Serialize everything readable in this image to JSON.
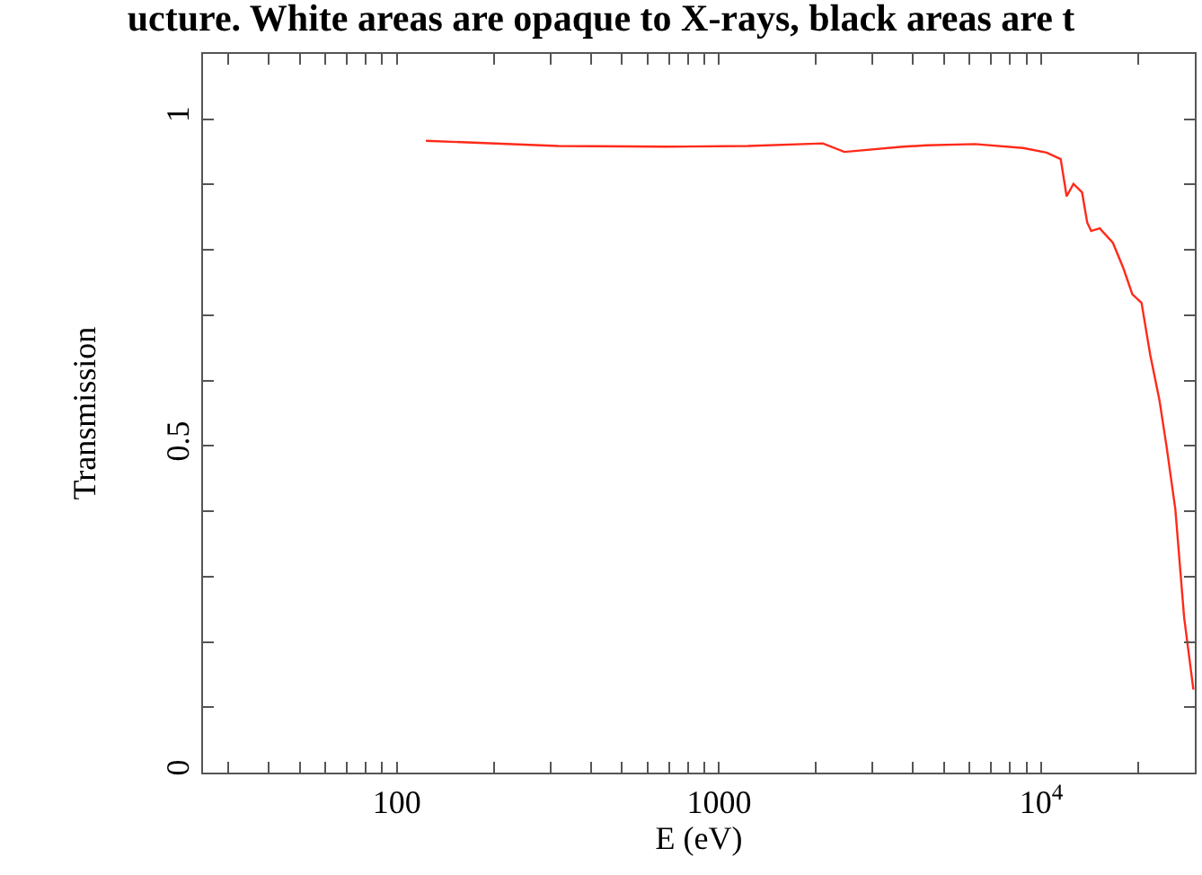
{
  "chart_data": {
    "type": "line",
    "title": "ucture. White areas are opaque to X-rays, black areas are t",
    "xlabel": "E (eV)",
    "ylabel": "Transmission",
    "log": "x",
    "grid": false,
    "marker": "none",
    "line_style": "solid",
    "xlim": [
      25,
      30000
    ],
    "xticks": [
      {
        "value": 30,
        "label": null
      },
      {
        "value": 40,
        "label": null
      },
      {
        "value": 50,
        "label": null
      },
      {
        "value": 60,
        "label": null
      },
      {
        "value": 70,
        "label": null
      },
      {
        "value": 80,
        "label": null
      },
      {
        "value": 90,
        "label": null
      },
      100,
      {
        "value": 200,
        "label": null
      },
      {
        "value": 300,
        "label": null
      },
      {
        "value": 400,
        "label": null
      },
      {
        "value": 500,
        "label": null
      },
      {
        "value": 600,
        "label": null
      },
      {
        "value": 700,
        "label": null
      },
      {
        "value": 800,
        "label": null
      },
      {
        "value": 900,
        "label": null
      },
      1000,
      {
        "value": 2000,
        "label": null
      },
      {
        "value": 3000,
        "label": null
      },
      {
        "value": 4000,
        "label": null
      },
      {
        "value": 5000,
        "label": null
      },
      {
        "value": 6000,
        "label": null
      },
      {
        "value": 7000,
        "label": null
      },
      {
        "value": 8000,
        "label": null
      },
      {
        "value": 9000,
        "label": null
      },
      {
        "value": 10000,
        "label": "10$^{4}$"
      },
      {
        "value": 20000,
        "label": null
      }
    ],
    "ylim": [
      0,
      1.1
    ],
    "yticks": [
      0,
      {
        "value": 0.1,
        "label": null
      },
      {
        "value": 0.2,
        "label": null
      },
      {
        "value": 0.3,
        "label": null
      },
      {
        "value": 0.4,
        "label": null
      },
      0.5,
      {
        "value": 0.6,
        "label": null
      },
      {
        "value": 0.7,
        "label": null
      },
      {
        "value": 0.8,
        "label": null
      },
      {
        "value": 0.9,
        "label": null
      },
      1
    ],
    "series": [
      {
        "color": "#ff2a1a",
        "x": [
          123,
          316,
          681,
          1227,
          2100,
          2450,
          3730,
          4400,
          6230,
          8800,
          10400,
          11500,
          12000,
          12600,
          13400,
          13900,
          14300,
          15200,
          16700,
          18000,
          19200,
          20500,
          21800,
          23300,
          24500,
          26100,
          27800,
          29700
        ],
        "values": [
          0.967,
          0.959,
          0.958,
          0.959,
          0.963,
          0.95,
          0.958,
          0.96,
          0.962,
          0.956,
          0.949,
          0.939,
          0.882,
          0.901,
          0.888,
          0.842,
          0.829,
          0.833,
          0.811,
          0.772,
          0.732,
          0.719,
          0.64,
          0.57,
          0.5,
          0.403,
          0.237,
          0.127
        ]
      }
    ]
  }
}
